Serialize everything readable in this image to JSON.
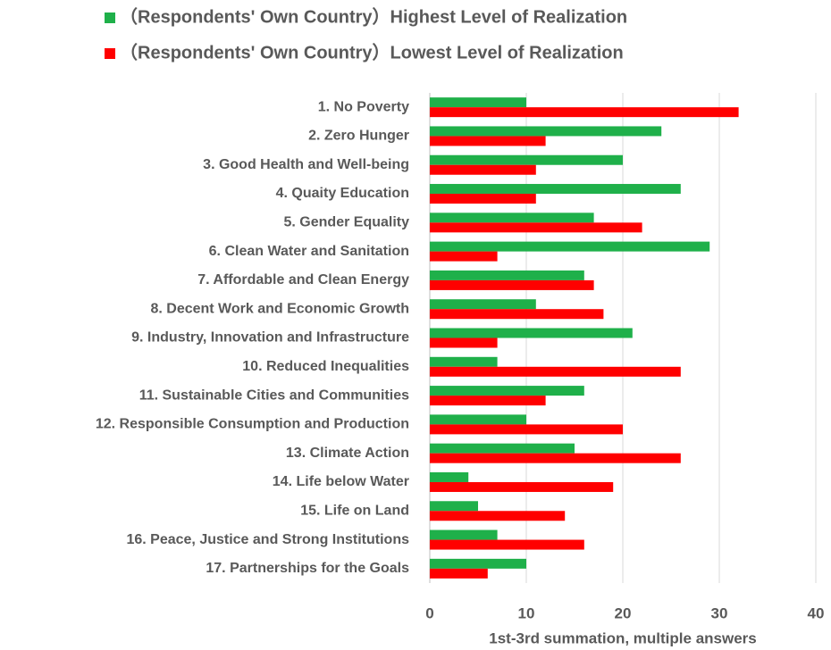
{
  "chart_data": {
    "type": "bar",
    "orientation": "horizontal",
    "categories": [
      "1. No Poverty",
      "2. Zero Hunger",
      "3. Good Health and Well-being",
      "4. Quaity Education",
      "5. Gender Equality",
      "6. Clean Water and Sanitation",
      "7. Affordable and Clean Energy",
      "8. Decent Work and Economic Growth",
      "9. Industry, Innovation and Infrastructure",
      "10. Reduced Inequalities",
      "11. Sustainable Cities and Communities",
      "12. Responsible Consumption and Production",
      "13. Climate Action",
      "14. Life below Water",
      "15. Life on Land",
      "16. Peace, Justice and Strong Institutions",
      "17. Partnerships for the Goals"
    ],
    "series": [
      {
        "name": "（Respondents' Own Country）Highest Level of Realization",
        "color": "#1fb04a",
        "values": [
          10,
          24,
          20,
          26,
          17,
          29,
          16,
          11,
          21,
          7,
          16,
          10,
          15,
          4,
          5,
          7,
          10
        ]
      },
      {
        "name": "（Respondents' Own Country）Lowest Level of Realization",
        "color": "#ff0000",
        "values": [
          32,
          12,
          11,
          11,
          22,
          7,
          17,
          18,
          7,
          26,
          12,
          20,
          26,
          19,
          14,
          16,
          6
        ]
      }
    ],
    "xlabel": "1st-3rd summation, multiple answers",
    "xlim": [
      0,
      40
    ],
    "xticks": [
      0,
      10,
      20,
      30,
      40
    ],
    "grid": true,
    "legend": "top"
  }
}
